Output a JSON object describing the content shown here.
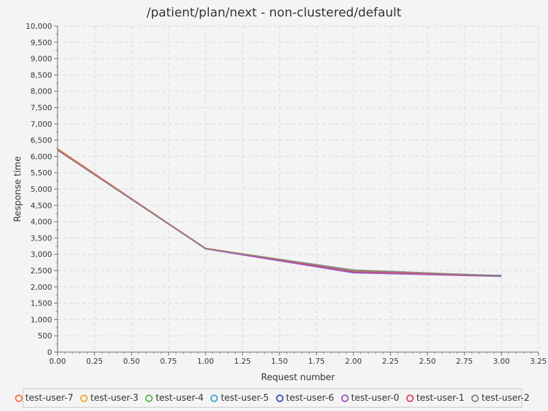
{
  "chart_data": {
    "type": "line",
    "title": "/patient/plan/next - non-clustered/default",
    "xlabel": "Request number",
    "ylabel": "Response time",
    "xlim": [
      0,
      3.25
    ],
    "ylim": [
      0,
      10000
    ],
    "xticks": [
      "0.00",
      "0.25",
      "0.50",
      "0.75",
      "1.00",
      "1.25",
      "1.50",
      "1.75",
      "2.00",
      "2.25",
      "2.50",
      "2.75",
      "3.00",
      "3.25"
    ],
    "yticks": [
      "0",
      "500",
      "1,000",
      "1,500",
      "2,000",
      "2,500",
      "3,000",
      "3,500",
      "4,000",
      "4,500",
      "5,000",
      "5,500",
      "6,000",
      "6,500",
      "7,000",
      "7,500",
      "8,000",
      "8,500",
      "9,000",
      "9,500",
      "10,000"
    ],
    "grid": true,
    "legend_position": "bottom",
    "x": [
      0,
      1,
      2,
      3
    ],
    "series": [
      {
        "name": "test-user-7",
        "color": "#f07b3f",
        "values": [
          6240,
          3180,
          2480,
          2330
        ]
      },
      {
        "name": "test-user-3",
        "color": "#f2b134",
        "values": [
          6220,
          3190,
          2510,
          2340
        ]
      },
      {
        "name": "test-user-4",
        "color": "#5cb85c",
        "values": [
          6200,
          3180,
          2500,
          2350
        ]
      },
      {
        "name": "test-user-5",
        "color": "#46aecb",
        "values": [
          6210,
          3175,
          2460,
          2345
        ]
      },
      {
        "name": "test-user-6",
        "color": "#4455bb",
        "values": [
          6195,
          3170,
          2440,
          2350
        ]
      },
      {
        "name": "test-user-0",
        "color": "#9b59c6",
        "values": [
          6205,
          3165,
          2430,
          2320
        ]
      },
      {
        "name": "test-user-1",
        "color": "#d9506a",
        "values": [
          6215,
          3185,
          2470,
          2335
        ]
      },
      {
        "name": "test-user-2",
        "color": "#8a8a8a",
        "values": [
          6190,
          3175,
          2520,
          2340
        ]
      }
    ]
  }
}
